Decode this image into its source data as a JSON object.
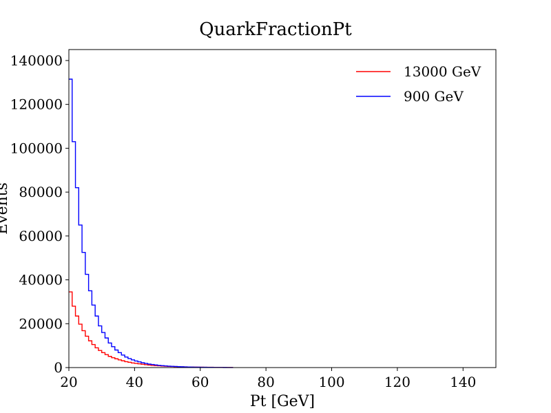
{
  "chart_data": {
    "type": "line",
    "title": "QuarkFractionPt",
    "xlabel": "Pt [GeV]",
    "ylabel": "Events",
    "xlim": [
      20,
      150
    ],
    "ylim": [
      0,
      145000
    ],
    "xticks": [
      "20",
      "40",
      "60",
      "80",
      "100",
      "120",
      "140"
    ],
    "yticks": [
      "0",
      "20000",
      "40000",
      "60000",
      "80000",
      "100000",
      "120000",
      "140000"
    ],
    "grid": false,
    "legend_position": "top-right",
    "bin_width": 1,
    "series": [
      {
        "name": "13000 GeV",
        "color": "#ff0000",
        "x": [
          20,
          21,
          22,
          23,
          24,
          25,
          26,
          27,
          28,
          29,
          30,
          31,
          32,
          33,
          34,
          35,
          36,
          37,
          38,
          39,
          40,
          41,
          42,
          43,
          44,
          45,
          46,
          47,
          48,
          49,
          50,
          51,
          52,
          53,
          54,
          55,
          56,
          57,
          58,
          59,
          60,
          61,
          62,
          63,
          64,
          65,
          66,
          67,
          68,
          69
        ],
        "values": [
          34500,
          28000,
          23500,
          19800,
          16800,
          14300,
          12200,
          10500,
          9000,
          7800,
          6800,
          5900,
          5100,
          4500,
          4000,
          3500,
          3100,
          2700,
          2400,
          2100,
          1900,
          1700,
          1500,
          1300,
          1150,
          1000,
          900,
          800,
          700,
          620,
          550,
          490,
          430,
          380,
          340,
          300,
          270,
          240,
          210,
          190,
          170,
          150,
          130,
          120,
          100,
          90,
          80,
          70,
          60,
          50
        ]
      },
      {
        "name": "900 GeV",
        "color": "#0000ff",
        "x": [
          20,
          21,
          22,
          23,
          24,
          25,
          26,
          27,
          28,
          29,
          30,
          31,
          32,
          33,
          34,
          35,
          36,
          37,
          38,
          39,
          40,
          41,
          42,
          43,
          44,
          45,
          46,
          47,
          48,
          49,
          50,
          51,
          52,
          53,
          54,
          55,
          56,
          57,
          58,
          59,
          60,
          61,
          62,
          63,
          64,
          65,
          66,
          67,
          68,
          69
        ],
        "values": [
          131500,
          103000,
          82000,
          65000,
          52500,
          42500,
          35000,
          28500,
          23500,
          19000,
          16000,
          13500,
          11200,
          9500,
          8000,
          6800,
          5700,
          4800,
          4100,
          3500,
          3000,
          2600,
          2200,
          1900,
          1600,
          1400,
          1200,
          1000,
          870,
          750,
          650,
          560,
          480,
          410,
          350,
          300,
          260,
          220,
          190,
          160,
          140,
          120,
          100,
          85,
          70,
          60,
          50,
          40,
          30,
          20
        ]
      }
    ]
  }
}
